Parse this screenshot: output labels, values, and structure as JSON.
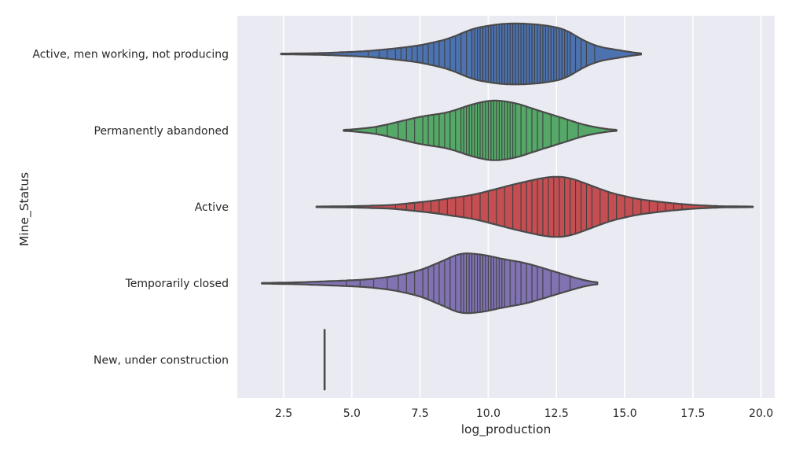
{
  "chart_data": {
    "type": "violin",
    "orientation": "horizontal",
    "title": "",
    "xlabel": "log_production",
    "ylabel": "Mine_Status",
    "xlim": [
      0.8,
      20.5
    ],
    "xticks": [
      2.5,
      5.0,
      7.5,
      10.0,
      12.5,
      15.0,
      17.5,
      20.0
    ],
    "xtick_labels": [
      "2.5",
      "5.0",
      "7.5",
      "10.0",
      "12.5",
      "15.0",
      "17.5",
      "20.0"
    ],
    "grid": true,
    "inner": "stick",
    "categories": [
      "Active, men working, not producing",
      "Permanently abandoned",
      "Active",
      "Temporarily closed",
      "New, under construction"
    ],
    "violins": [
      {
        "category": "Active, men working, not producing",
        "color": "#4c72b0",
        "min": 2.4,
        "max": 15.6,
        "profile": [
          [
            2.4,
            0.01
          ],
          [
            4.0,
            0.03
          ],
          [
            5.5,
            0.09
          ],
          [
            6.5,
            0.17
          ],
          [
            7.5,
            0.28
          ],
          [
            8.5,
            0.48
          ],
          [
            9.5,
            0.85
          ],
          [
            10.5,
            0.99
          ],
          [
            11.2,
            1.0
          ],
          [
            12.0,
            0.95
          ],
          [
            12.8,
            0.82
          ],
          [
            13.4,
            0.48
          ],
          [
            14.0,
            0.24
          ],
          [
            14.8,
            0.12
          ],
          [
            15.6,
            0.01
          ]
        ],
        "sticks": [
          5.6,
          6.0,
          6.3,
          6.6,
          6.8,
          7.0,
          7.2,
          7.4,
          7.6,
          7.8,
          8.0,
          8.2,
          8.4,
          8.6,
          8.8,
          9.0,
          9.2,
          9.4,
          9.5,
          9.6,
          9.7,
          9.8,
          9.9,
          10.0,
          10.1,
          10.2,
          10.3,
          10.4,
          10.5,
          10.6,
          10.7,
          10.8,
          10.9,
          11.0,
          11.1,
          11.2,
          11.3,
          11.4,
          11.5,
          11.6,
          11.7,
          11.8,
          11.9,
          12.0,
          12.1,
          12.2,
          12.3,
          12.4,
          12.5,
          12.6,
          12.7,
          12.8,
          12.9,
          13.0,
          13.2,
          13.4,
          13.6,
          13.9
        ]
      },
      {
        "category": "Permanently abandoned",
        "color": "#55a868",
        "min": 4.7,
        "max": 14.7,
        "profile": [
          [
            4.7,
            0.01
          ],
          [
            5.5,
            0.07
          ],
          [
            6.0,
            0.13
          ],
          [
            6.7,
            0.28
          ],
          [
            7.5,
            0.45
          ],
          [
            8.5,
            0.58
          ],
          [
            9.5,
            0.88
          ],
          [
            10.2,
            1.0
          ],
          [
            11.0,
            0.9
          ],
          [
            11.8,
            0.66
          ],
          [
            12.6,
            0.44
          ],
          [
            13.5,
            0.18
          ],
          [
            14.2,
            0.06
          ],
          [
            14.7,
            0.01
          ]
        ],
        "sticks": [
          5.9,
          6.3,
          6.7,
          7.0,
          7.3,
          7.6,
          7.8,
          8.0,
          8.2,
          8.4,
          8.6,
          8.8,
          9.0,
          9.1,
          9.2,
          9.3,
          9.4,
          9.5,
          9.6,
          9.7,
          9.8,
          9.9,
          10.0,
          10.1,
          10.2,
          10.3,
          10.4,
          10.5,
          10.6,
          10.7,
          10.8,
          10.9,
          11.0,
          11.2,
          11.4,
          11.6,
          11.8,
          12.0,
          12.3,
          12.6,
          12.9,
          13.3
        ]
      },
      {
        "category": "Active",
        "color": "#c44e52",
        "min": 3.7,
        "max": 19.7,
        "profile": [
          [
            3.7,
            0.01
          ],
          [
            5.0,
            0.02
          ],
          [
            6.5,
            0.06
          ],
          [
            8.0,
            0.2
          ],
          [
            9.5,
            0.4
          ],
          [
            11.0,
            0.75
          ],
          [
            12.0,
            0.95
          ],
          [
            12.5,
            1.0
          ],
          [
            13.0,
            0.95
          ],
          [
            13.7,
            0.72
          ],
          [
            14.5,
            0.45
          ],
          [
            15.5,
            0.25
          ],
          [
            16.5,
            0.14
          ],
          [
            17.5,
            0.06
          ],
          [
            18.5,
            0.02
          ],
          [
            19.7,
            0.01
          ]
        ],
        "sticks": [
          6.6,
          7.0,
          7.3,
          7.6,
          7.9,
          8.2,
          8.5,
          8.8,
          9.1,
          9.4,
          9.7,
          10.0,
          10.3,
          10.6,
          10.9,
          11.2,
          11.4,
          11.6,
          11.8,
          12.0,
          12.2,
          12.4,
          12.6,
          12.8,
          13.0,
          13.2,
          13.4,
          13.6,
          13.8,
          14.1,
          14.4,
          14.7,
          15.0,
          15.3,
          15.6,
          15.9,
          16.2,
          16.5,
          16.8,
          17.1
        ]
      },
      {
        "category": "Temporarily closed",
        "color": "#8172b2",
        "min": 1.7,
        "max": 14.0,
        "profile": [
          [
            1.7,
            0.01
          ],
          [
            3.0,
            0.03
          ],
          [
            4.5,
            0.08
          ],
          [
            5.5,
            0.12
          ],
          [
            6.5,
            0.22
          ],
          [
            7.5,
            0.42
          ],
          [
            8.3,
            0.72
          ],
          [
            9.0,
            1.0
          ],
          [
            9.8,
            0.94
          ],
          [
            10.6,
            0.78
          ],
          [
            11.3,
            0.68
          ],
          [
            12.0,
            0.5
          ],
          [
            12.8,
            0.28
          ],
          [
            13.5,
            0.1
          ],
          [
            14.0,
            0.02
          ]
        ],
        "sticks": [
          4.8,
          5.3,
          5.8,
          6.3,
          6.7,
          7.0,
          7.3,
          7.6,
          7.8,
          8.0,
          8.2,
          8.4,
          8.6,
          8.8,
          9.0,
          9.1,
          9.2,
          9.3,
          9.4,
          9.5,
          9.6,
          9.7,
          9.8,
          9.9,
          10.0,
          10.1,
          10.2,
          10.3,
          10.4,
          10.5,
          10.6,
          10.8,
          11.0,
          11.2,
          11.4,
          11.6,
          11.8,
          12.0,
          12.3,
          12.6,
          13.0
        ]
      },
      {
        "category": "New, under construction",
        "color": "#ccb974",
        "min": 4.0,
        "max": 4.0,
        "profile": [],
        "sticks": [
          4.0
        ]
      }
    ]
  }
}
